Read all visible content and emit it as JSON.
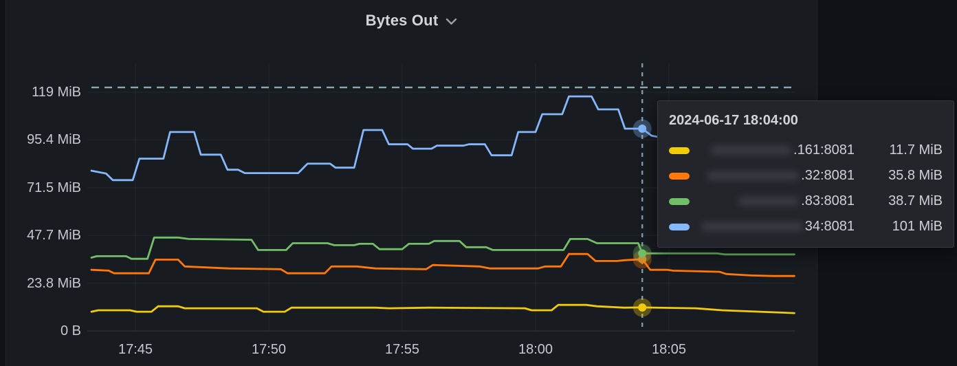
{
  "panel": {
    "title": "Bytes Out"
  },
  "tooltip": {
    "timestamp": "2024-06-17 18:04:00",
    "rows": [
      {
        "label": ".161:8081",
        "value": "11.7 MiB",
        "color": "#f2cc0c",
        "prefix_redacted": true
      },
      {
        "label": ".32:8081",
        "value": "35.8 MiB",
        "color": "#ff780a",
        "prefix_redacted": true
      },
      {
        "label": ".83:8081",
        "value": "38.7 MiB",
        "color": "#73bf69",
        "prefix_redacted": true
      },
      {
        "label": "34:8081",
        "value": "101 MiB",
        "color": "#84b7fc",
        "prefix_redacted": true
      }
    ]
  },
  "chart_data": {
    "type": "line",
    "title": "Bytes Out",
    "ylabel": "bytes out",
    "legend_position": "tooltip-only",
    "grid": true,
    "x_ticks": [
      {
        "label": "17:45",
        "t": 2
      },
      {
        "label": "17:50",
        "t": 7
      },
      {
        "label": "17:55",
        "t": 12
      },
      {
        "label": "18:00",
        "t": 17
      },
      {
        "label": "18:05",
        "t": 22
      }
    ],
    "x_domain_minutes_from_17_43": [
      0.35,
      26.7
    ],
    "y_ticks": [
      {
        "label": "0 B",
        "v": 0
      },
      {
        "label": "23.8 MiB",
        "v": 23.8
      },
      {
        "label": "47.7 MiB",
        "v": 47.7
      },
      {
        "label": "71.5 MiB",
        "v": 71.5
      },
      {
        "label": "95.4 MiB",
        "v": 95.4
      },
      {
        "label": "119 MiB",
        "v": 119.2
      }
    ],
    "ylim_mib": [
      0,
      133.6
    ],
    "threshold_dashed_line_mib": 121.6,
    "crosshair": {
      "time": "18:04:00",
      "t": 21
    },
    "series": [
      {
        "name": ".161:8081",
        "color": "#f2cc0c",
        "prefix_redacted": true,
        "value_at_crosshair_mib": 11.7,
        "points": [
          [
            0.35,
            9.6
          ],
          [
            0.6,
            10.3
          ],
          [
            1.8,
            10.3
          ],
          [
            2.05,
            9.6
          ],
          [
            2.6,
            9.6
          ],
          [
            2.85,
            12.3
          ],
          [
            3.6,
            12.3
          ],
          [
            3.85,
            11.3
          ],
          [
            6.55,
            11.3
          ],
          [
            6.8,
            9.6
          ],
          [
            7.6,
            9.6
          ],
          [
            7.85,
            11.6
          ],
          [
            11.0,
            11.6
          ],
          [
            11.5,
            11.3
          ],
          [
            13.0,
            11.6
          ],
          [
            16.6,
            11.3
          ],
          [
            16.85,
            10.3
          ],
          [
            17.6,
            10.3
          ],
          [
            17.85,
            13.0
          ],
          [
            18.9,
            13.0
          ],
          [
            19.3,
            12.3
          ],
          [
            20.3,
            11.6
          ],
          [
            21.0,
            11.7
          ],
          [
            23.0,
            11.3
          ],
          [
            24.0,
            10.3
          ],
          [
            25.4,
            9.6
          ],
          [
            26.7,
            8.9
          ]
        ]
      },
      {
        "name": ".32:8081",
        "color": "#ff780a",
        "prefix_redacted": true,
        "value_at_crosshair_mib": 35.8,
        "points": [
          [
            0.35,
            30.5
          ],
          [
            1.0,
            30.1
          ],
          [
            1.2,
            28.8
          ],
          [
            2.5,
            28.8
          ],
          [
            2.75,
            35.6
          ],
          [
            3.6,
            35.6
          ],
          [
            3.85,
            32.2
          ],
          [
            5.5,
            31.2
          ],
          [
            7.45,
            30.8
          ],
          [
            7.7,
            28.8
          ],
          [
            9.1,
            28.8
          ],
          [
            9.35,
            32.2
          ],
          [
            10.3,
            32.2
          ],
          [
            11.0,
            31.2
          ],
          [
            12.9,
            30.8
          ],
          [
            13.15,
            32.9
          ],
          [
            14.9,
            32.2
          ],
          [
            15.3,
            31.2
          ],
          [
            17.1,
            31.2
          ],
          [
            17.35,
            32.2
          ],
          [
            17.95,
            32.2
          ],
          [
            18.25,
            38.4
          ],
          [
            18.95,
            38.4
          ],
          [
            19.25,
            34.9
          ],
          [
            20.05,
            34.9
          ],
          [
            20.35,
            35.3
          ],
          [
            21.0,
            35.8
          ],
          [
            21.3,
            30.5
          ],
          [
            21.95,
            30.5
          ],
          [
            22.15,
            30.1
          ],
          [
            23.9,
            29.5
          ],
          [
            24.15,
            28.4
          ],
          [
            25.1,
            27.7
          ],
          [
            25.9,
            27.4
          ],
          [
            26.7,
            27.4
          ]
        ]
      },
      {
        "name": ".83:8081",
        "color": "#73bf69",
        "prefix_redacted": true,
        "value_at_crosshair_mib": 38.7,
        "points": [
          [
            0.35,
            36.6
          ],
          [
            0.55,
            37.3
          ],
          [
            1.65,
            37.3
          ],
          [
            1.85,
            36
          ],
          [
            2.45,
            36
          ],
          [
            2.7,
            46.6
          ],
          [
            3.6,
            46.6
          ],
          [
            4.0,
            45.9
          ],
          [
            6.35,
            45.5
          ],
          [
            6.6,
            40.4
          ],
          [
            7.65,
            40.4
          ],
          [
            7.9,
            43.8
          ],
          [
            9.2,
            43.8
          ],
          [
            9.45,
            42.8
          ],
          [
            10.2,
            42.8
          ],
          [
            10.4,
            43.5
          ],
          [
            10.9,
            43.5
          ],
          [
            11.15,
            40.8
          ],
          [
            12.0,
            40.8
          ],
          [
            12.25,
            43.5
          ],
          [
            13.0,
            43.5
          ],
          [
            13.2,
            44.9
          ],
          [
            14.15,
            44.9
          ],
          [
            14.4,
            41.8
          ],
          [
            15.15,
            41.8
          ],
          [
            15.4,
            40.4
          ],
          [
            18.05,
            40.4
          ],
          [
            18.3,
            45.9
          ],
          [
            18.95,
            45.9
          ],
          [
            19.3,
            43.8
          ],
          [
            20.85,
            43.8
          ],
          [
            21.0,
            38.7
          ],
          [
            23.8,
            38.7
          ],
          [
            24.1,
            38.2
          ],
          [
            26.7,
            38.2
          ]
        ]
      },
      {
        "name": "34:8081",
        "color": "#84b7fc",
        "prefix_redacted": true,
        "value_at_crosshair_mib": 101,
        "points": [
          [
            0.35,
            80
          ],
          [
            0.9,
            78.6
          ],
          [
            1.15,
            75.3
          ],
          [
            1.9,
            75.3
          ],
          [
            2.15,
            86
          ],
          [
            3.05,
            86
          ],
          [
            3.3,
            99.3
          ],
          [
            4.2,
            99.3
          ],
          [
            4.45,
            88
          ],
          [
            5.2,
            88
          ],
          [
            5.45,
            80.5
          ],
          [
            5.85,
            80.5
          ],
          [
            6.1,
            78.8
          ],
          [
            8.1,
            78.8
          ],
          [
            8.45,
            83.5
          ],
          [
            9.3,
            83.5
          ],
          [
            9.5,
            81.5
          ],
          [
            10.2,
            81.5
          ],
          [
            10.55,
            100.3
          ],
          [
            11.25,
            100.3
          ],
          [
            11.5,
            93.2
          ],
          [
            12.2,
            93.2
          ],
          [
            12.4,
            91
          ],
          [
            13.1,
            91
          ],
          [
            13.3,
            92.5
          ],
          [
            14.3,
            92.5
          ],
          [
            14.5,
            93.2
          ],
          [
            15.1,
            93.2
          ],
          [
            15.35,
            87.7
          ],
          [
            16.1,
            87.7
          ],
          [
            16.35,
            99.3
          ],
          [
            17.0,
            99.3
          ],
          [
            17.25,
            108.2
          ],
          [
            18.0,
            108.2
          ],
          [
            18.25,
            117.1
          ],
          [
            19.1,
            117.1
          ],
          [
            19.35,
            110.6
          ],
          [
            20.1,
            110.6
          ],
          [
            20.35,
            101
          ],
          [
            21.0,
            101
          ],
          [
            21.35,
            97.5
          ],
          [
            21.75,
            96.5
          ]
        ]
      }
    ]
  }
}
